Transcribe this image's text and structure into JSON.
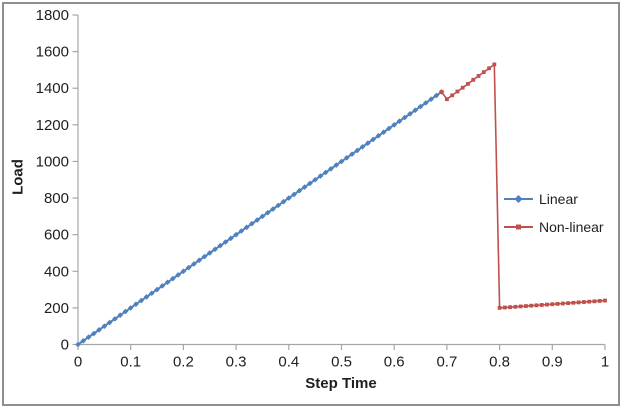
{
  "window": {
    "background": "#ffffff",
    "border_color": "#8f8f8f"
  },
  "chart_data": {
    "type": "line",
    "title": "",
    "xlabel": "Step Time",
    "ylabel": "Load",
    "xlim": [
      0,
      1
    ],
    "ylim": [
      0,
      1800
    ],
    "grid": false,
    "axis_color": "#a6a6a6",
    "text_color": "#1f1f1f",
    "legend_position": "middle-right",
    "x_ticks": [
      0,
      0.1,
      0.2,
      0.3,
      0.4,
      0.5,
      0.6,
      0.7,
      0.8,
      0.9,
      1
    ],
    "x_tick_labels": [
      "0",
      "0.1",
      "0.2",
      "0.3",
      "0.4",
      "0.5",
      "0.6",
      "0.7",
      "0.8",
      "0.9",
      "1"
    ],
    "y_ticks": [
      0,
      200,
      400,
      600,
      800,
      1000,
      1200,
      1400,
      1600,
      1800
    ],
    "y_tick_labels": [
      "0",
      "200",
      "400",
      "600",
      "800",
      "1000",
      "1200",
      "1400",
      "1600",
      "1800"
    ],
    "series": [
      {
        "name": "Linear",
        "color": "#4F81BD",
        "marker": "diamond",
        "marker_size": 2.8,
        "line_width": 2,
        "points": [
          [
            0,
            0
          ],
          [
            0.01,
            20
          ],
          [
            0.02,
            40
          ],
          [
            0.03,
            60
          ],
          [
            0.04,
            80
          ],
          [
            0.05,
            100
          ],
          [
            0.06,
            120
          ],
          [
            0.07,
            140
          ],
          [
            0.08,
            160
          ],
          [
            0.09,
            180
          ],
          [
            0.1,
            200
          ],
          [
            0.11,
            220
          ],
          [
            0.12,
            240
          ],
          [
            0.13,
            260
          ],
          [
            0.14,
            280
          ],
          [
            0.15,
            300
          ],
          [
            0.16,
            320
          ],
          [
            0.17,
            340
          ],
          [
            0.18,
            360
          ],
          [
            0.19,
            380
          ],
          [
            0.2,
            400
          ],
          [
            0.21,
            420
          ],
          [
            0.22,
            440
          ],
          [
            0.23,
            460
          ],
          [
            0.24,
            480
          ],
          [
            0.25,
            500
          ],
          [
            0.26,
            520
          ],
          [
            0.27,
            540
          ],
          [
            0.28,
            560
          ],
          [
            0.29,
            580
          ],
          [
            0.3,
            600
          ],
          [
            0.31,
            620
          ],
          [
            0.32,
            640
          ],
          [
            0.33,
            660
          ],
          [
            0.34,
            680
          ],
          [
            0.35,
            700
          ],
          [
            0.36,
            720
          ],
          [
            0.37,
            740
          ],
          [
            0.38,
            760
          ],
          [
            0.39,
            780
          ],
          [
            0.4,
            800
          ],
          [
            0.41,
            820
          ],
          [
            0.42,
            840
          ],
          [
            0.43,
            860
          ],
          [
            0.44,
            880
          ],
          [
            0.45,
            900
          ],
          [
            0.46,
            920
          ],
          [
            0.47,
            940
          ],
          [
            0.48,
            960
          ],
          [
            0.49,
            980
          ],
          [
            0.5,
            1000
          ],
          [
            0.51,
            1020
          ],
          [
            0.52,
            1040
          ],
          [
            0.53,
            1060
          ],
          [
            0.54,
            1080
          ],
          [
            0.55,
            1100
          ],
          [
            0.56,
            1120
          ],
          [
            0.57,
            1140
          ],
          [
            0.58,
            1160
          ],
          [
            0.59,
            1180
          ],
          [
            0.6,
            1200
          ],
          [
            0.61,
            1220
          ],
          [
            0.62,
            1240
          ],
          [
            0.63,
            1260
          ],
          [
            0.64,
            1280
          ],
          [
            0.65,
            1300
          ],
          [
            0.66,
            1320
          ],
          [
            0.67,
            1340
          ],
          [
            0.68,
            1360
          ],
          [
            0.69,
            1380
          ]
        ]
      },
      {
        "name": "Non-linear",
        "color": "#C0504D",
        "marker": "square",
        "marker_size": 1.9,
        "line_width": 1.6,
        "points": [
          [
            0.69,
            1380
          ],
          [
            0.7,
            1340
          ],
          [
            0.71,
            1361
          ],
          [
            0.72,
            1382
          ],
          [
            0.73,
            1403
          ],
          [
            0.74,
            1424
          ],
          [
            0.75,
            1446
          ],
          [
            0.76,
            1467
          ],
          [
            0.77,
            1488
          ],
          [
            0.78,
            1509
          ],
          [
            0.79,
            1530
          ],
          [
            0.8,
            200
          ],
          [
            0.81,
            202
          ],
          [
            0.82,
            204
          ],
          [
            0.83,
            206
          ],
          [
            0.84,
            208
          ],
          [
            0.85,
            210
          ],
          [
            0.86,
            212
          ],
          [
            0.87,
            214
          ],
          [
            0.88,
            216
          ],
          [
            0.89,
            218
          ],
          [
            0.9,
            220
          ],
          [
            0.91,
            222
          ],
          [
            0.92,
            224
          ],
          [
            0.93,
            226
          ],
          [
            0.94,
            228
          ],
          [
            0.95,
            230
          ],
          [
            0.96,
            232
          ],
          [
            0.97,
            234
          ],
          [
            0.98,
            236
          ],
          [
            0.99,
            238
          ],
          [
            1,
            240
          ]
        ]
      }
    ]
  }
}
